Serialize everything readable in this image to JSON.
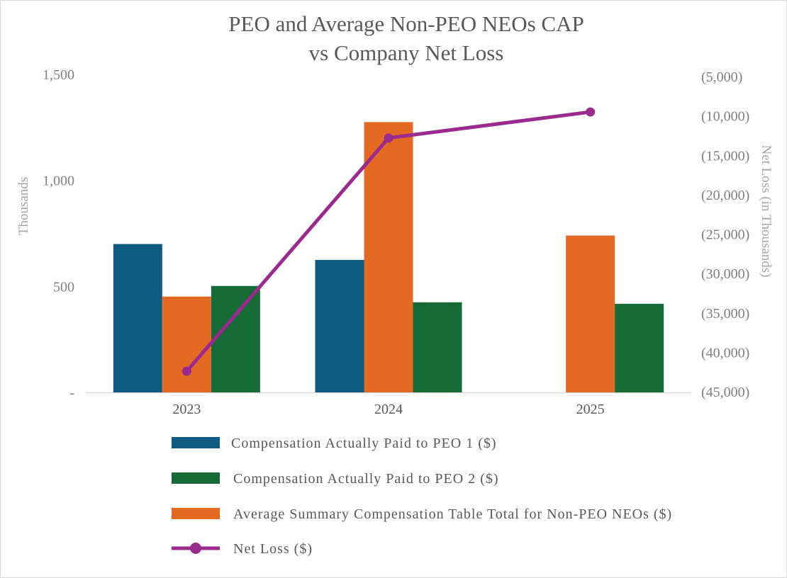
{
  "chart_data": {
    "type": "bar",
    "title_lines": [
      "PEO and Average Non-PEO NEOs CAP",
      "vs Company Net Loss"
    ],
    "categories": [
      "2023",
      "2024",
      "2025"
    ],
    "ylabel": "Thousands",
    "y2label": "Net Loss (in Thousands)",
    "ylim": [
      0,
      1500
    ],
    "y_ticks": [
      0,
      500,
      1000,
      1500
    ],
    "y_tick_labels": [
      "-",
      "500",
      "1,000",
      "1,500"
    ],
    "y2lim": [
      -45000,
      -5000
    ],
    "y2_ticks": [
      -5000,
      -10000,
      -15000,
      -20000,
      -25000,
      -30000,
      -35000,
      -40000,
      -45000
    ],
    "y2_tick_labels": [
      "(5,000)",
      "(10,000)",
      "(15,000)",
      "(20,000)",
      "(25,000)",
      "(30,000)",
      "(35,000)",
      "(40,000)",
      "(45,000)"
    ],
    "grid": false,
    "legend_position": "bottom",
    "series": [
      {
        "name": "Compensation Actually Paid to PEO 1 ($)",
        "type": "bar",
        "color": "#0e5a80",
        "values": [
          700,
          625,
          null
        ]
      },
      {
        "name": "Average Summary Compensation Table Total for Non-PEO NEOs ($)",
        "type": "bar",
        "color": "#e46a24",
        "values": [
          452,
          1275,
          740
        ]
      },
      {
        "name": "Compensation Actually Paid to PEO 2 ($)",
        "type": "bar",
        "color": "#166b37",
        "values": [
          502,
          425,
          418
        ]
      },
      {
        "name": "Net Loss ($)",
        "type": "line",
        "axis": "secondary",
        "color": "#9b2a8e",
        "values": [
          -42400,
          -12800,
          -9500
        ]
      }
    ]
  },
  "legend": [
    {
      "label": "Compensation Actually Paid to PEO 1 ($)",
      "color": "#0e5a80",
      "kind": "bar"
    },
    {
      "label": "Compensation Actually Paid to PEO 2 ($)",
      "color": "#166b37",
      "kind": "bar"
    },
    {
      "label": "Average Summary Compensation Table Total for Non-PEO NEOs ($)",
      "color": "#e46a24",
      "kind": "bar"
    },
    {
      "label": "Net Loss ($)",
      "color": "#9b2a8e",
      "kind": "line"
    }
  ]
}
